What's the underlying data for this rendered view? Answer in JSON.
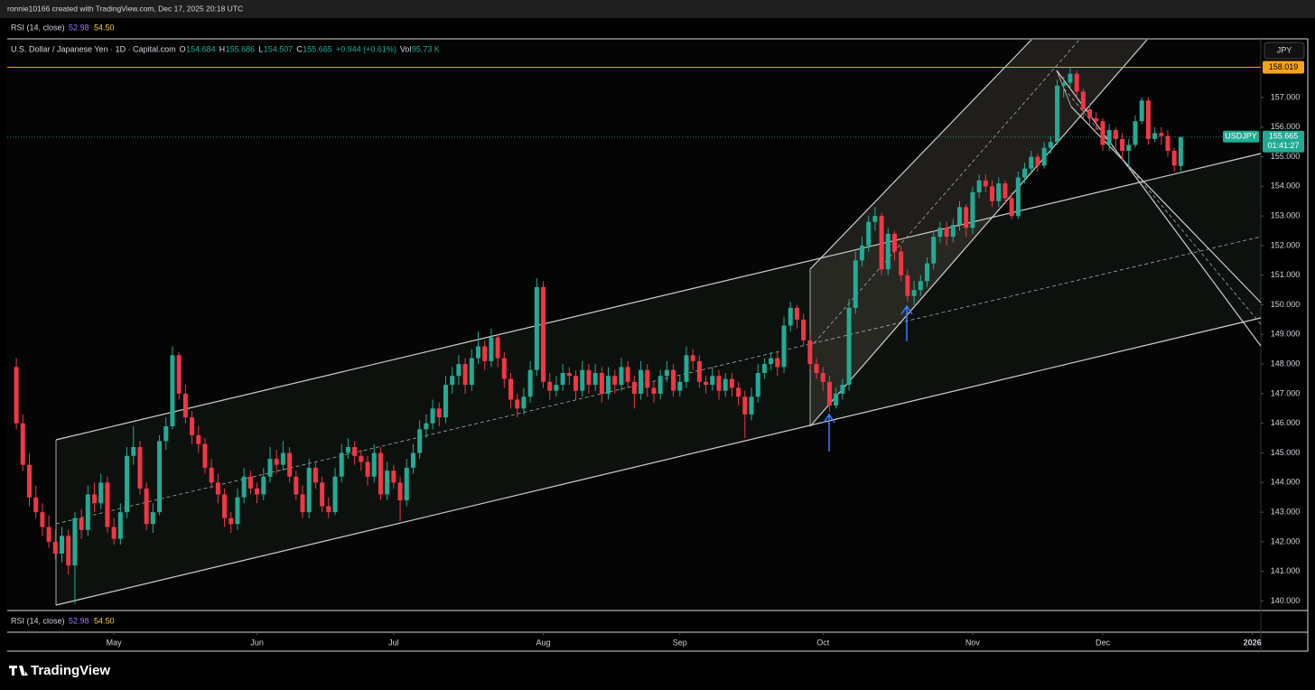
{
  "chart_data": {
    "type": "candlestick",
    "header": "ronnie10166 created with TradingView.com, Dec 17, 2025 20:18 UTC",
    "rsi_label": "RSI (14, close)",
    "rsi_values": [
      "52.98",
      "54.50"
    ],
    "title": "U.S. Dollar / Japanese Yen · 1D · Capital.com",
    "ohlc_keys": [
      "O",
      "H",
      "L",
      "C"
    ],
    "change": "+0.944 (+0.61%)",
    "volume_key": "Vol",
    "volume": "95.73 K",
    "currency": "JPY",
    "alert_level": 158.019,
    "ticker": "USDJPY",
    "countdown": "01:41:27",
    "brand": "TradingView",
    "up_color": "#22ab94",
    "down_color": "#f23645",
    "alert_color": "#f7a21b",
    "xlim": [
      -1.4,
      191.3
    ],
    "xticks": [
      {
        "value": 15,
        "label": "May"
      },
      {
        "value": 37,
        "label": "Jun"
      },
      {
        "value": 58,
        "label": "Jul"
      },
      {
        "value": 81,
        "label": "Aug"
      },
      {
        "value": 102,
        "label": "Sep"
      },
      {
        "value": 124,
        "label": "Oct"
      },
      {
        "value": 147,
        "label": "Nov"
      },
      {
        "value": 167,
        "label": "Dec"
      },
      {
        "value": 190,
        "label": "2026"
      }
    ],
    "ylim": [
      139.68,
      158.95
    ],
    "yticks": [
      {
        "value": 140,
        "label": "140.000"
      },
      {
        "value": 141,
        "label": "141.000"
      },
      {
        "value": 142,
        "label": "142.000"
      },
      {
        "value": 143,
        "label": "143.000"
      },
      {
        "value": 144,
        "label": "144.000"
      },
      {
        "value": 145,
        "label": "145.000"
      },
      {
        "value": 146,
        "label": "146.000"
      },
      {
        "value": 147,
        "label": "147.000"
      },
      {
        "value": 148,
        "label": "148.000"
      },
      {
        "value": 149,
        "label": "149.000"
      },
      {
        "value": 150,
        "label": "150.000"
      },
      {
        "value": 151,
        "label": "151.000"
      },
      {
        "value": 152,
        "label": "152.000"
      },
      {
        "value": 153,
        "label": "153.000"
      },
      {
        "value": 154,
        "label": "154.000"
      },
      {
        "value": 155,
        "label": "155.000"
      },
      {
        "value": 156,
        "label": "156.000"
      },
      {
        "value": 157,
        "label": "157.000"
      }
    ],
    "candles": [
      [
        147.9,
        148.2,
        145.8,
        146.0
      ],
      [
        146.0,
        146.3,
        144.4,
        144.6
      ],
      [
        144.6,
        145.0,
        143.2,
        143.5
      ],
      [
        143.5,
        143.9,
        142.8,
        143.0
      ],
      [
        143.0,
        143.3,
        142.2,
        142.5
      ],
      [
        142.5,
        142.9,
        141.8,
        142.0
      ],
      [
        142.0,
        142.4,
        141.4,
        141.6
      ],
      [
        141.6,
        142.5,
        141.3,
        142.2
      ],
      [
        142.2,
        142.4,
        140.9,
        141.2
      ],
      [
        141.2,
        143.0,
        139.9,
        142.8
      ],
      [
        142.8,
        143.1,
        142.1,
        142.4
      ],
      [
        142.4,
        143.9,
        142.2,
        143.6
      ],
      [
        143.6,
        144.0,
        143.0,
        143.3
      ],
      [
        143.3,
        144.3,
        143.1,
        144.0
      ],
      [
        144.0,
        144.2,
        142.3,
        142.5
      ],
      [
        142.5,
        142.8,
        141.9,
        142.1
      ],
      [
        142.1,
        143.3,
        141.9,
        143.0
      ],
      [
        143.0,
        145.2,
        142.8,
        144.9
      ],
      [
        144.9,
        145.9,
        144.6,
        145.2
      ],
      [
        145.2,
        145.4,
        143.6,
        143.8
      ],
      [
        143.8,
        144.0,
        142.4,
        142.6
      ],
      [
        142.6,
        143.3,
        142.3,
        143.0
      ],
      [
        143.0,
        145.6,
        142.9,
        145.4
      ],
      [
        145.4,
        146.2,
        145.1,
        145.9
      ],
      [
        145.9,
        148.6,
        145.8,
        148.3
      ],
      [
        148.3,
        148.4,
        146.8,
        147.0
      ],
      [
        147.0,
        147.3,
        146.0,
        146.2
      ],
      [
        146.2,
        146.4,
        145.3,
        145.6
      ],
      [
        145.6,
        145.9,
        145.0,
        145.3
      ],
      [
        145.3,
        145.5,
        144.3,
        144.5
      ],
      [
        144.5,
        144.8,
        143.8,
        144.0
      ],
      [
        144.0,
        144.3,
        143.3,
        143.6
      ],
      [
        143.6,
        143.8,
        142.5,
        142.8
      ],
      [
        142.8,
        143.0,
        142.3,
        142.6
      ],
      [
        142.6,
        143.8,
        142.4,
        143.5
      ],
      [
        143.5,
        144.5,
        143.3,
        144.2
      ],
      [
        144.2,
        144.4,
        143.6,
        143.8
      ],
      [
        143.8,
        144.0,
        143.3,
        143.6
      ],
      [
        143.6,
        144.5,
        143.4,
        144.2
      ],
      [
        144.2,
        145.2,
        144.0,
        144.8
      ],
      [
        144.8,
        145.1,
        144.3,
        144.6
      ],
      [
        144.6,
        145.4,
        144.4,
        145.0
      ],
      [
        145.0,
        145.2,
        144.0,
        144.2
      ],
      [
        144.2,
        144.4,
        143.4,
        143.6
      ],
      [
        143.6,
        143.9,
        142.8,
        143.0
      ],
      [
        143.0,
        144.8,
        142.8,
        144.5
      ],
      [
        144.5,
        144.7,
        143.8,
        144.0
      ],
      [
        144.0,
        144.2,
        143.0,
        143.2
      ],
      [
        143.2,
        143.5,
        142.8,
        143.0
      ],
      [
        143.0,
        144.5,
        142.9,
        144.2
      ],
      [
        144.2,
        145.3,
        144.0,
        145.0
      ],
      [
        145.0,
        145.5,
        144.8,
        145.2
      ],
      [
        145.2,
        145.4,
        144.6,
        144.9
      ],
      [
        144.9,
        145.1,
        144.4,
        144.7
      ],
      [
        144.7,
        144.9,
        143.9,
        144.2
      ],
      [
        144.2,
        145.3,
        144.0,
        145.0
      ],
      [
        145.0,
        145.2,
        143.4,
        143.6
      ],
      [
        143.6,
        144.7,
        143.4,
        144.4
      ],
      [
        144.4,
        144.6,
        143.8,
        144.0
      ],
      [
        144.0,
        144.2,
        142.7,
        143.4
      ],
      [
        143.4,
        144.8,
        143.2,
        144.5
      ],
      [
        144.5,
        145.3,
        144.3,
        145.0
      ],
      [
        145.0,
        146.1,
        144.8,
        145.8
      ],
      [
        145.8,
        146.3,
        145.5,
        146.0
      ],
      [
        146.0,
        146.8,
        145.8,
        146.5
      ],
      [
        146.5,
        146.7,
        145.9,
        146.2
      ],
      [
        146.2,
        147.6,
        146.0,
        147.3
      ],
      [
        147.3,
        147.9,
        147.0,
        147.6
      ],
      [
        147.6,
        148.3,
        147.3,
        148.0
      ],
      [
        148.0,
        148.2,
        147.0,
        147.3
      ],
      [
        147.3,
        148.5,
        147.1,
        148.2
      ],
      [
        148.2,
        149.1,
        148.0,
        148.6
      ],
      [
        148.6,
        148.8,
        147.8,
        148.1
      ],
      [
        148.1,
        149.2,
        147.9,
        148.9
      ],
      [
        148.9,
        149.0,
        147.9,
        148.2
      ],
      [
        148.2,
        148.4,
        147.2,
        147.5
      ],
      [
        147.5,
        147.7,
        146.5,
        146.8
      ],
      [
        146.8,
        147.0,
        146.2,
        146.5
      ],
      [
        146.5,
        147.2,
        146.3,
        146.9
      ],
      [
        146.9,
        148.1,
        146.7,
        147.8
      ],
      [
        147.8,
        150.9,
        147.6,
        150.6
      ],
      [
        150.6,
        150.8,
        147.2,
        147.4
      ],
      [
        147.4,
        147.7,
        146.8,
        147.1
      ],
      [
        147.1,
        147.6,
        146.9,
        147.3
      ],
      [
        147.3,
        148.0,
        147.1,
        147.7
      ],
      [
        147.7,
        147.9,
        147.3,
        147.6
      ],
      [
        147.6,
        147.8,
        146.8,
        147.1
      ],
      [
        147.1,
        148.1,
        146.9,
        147.8
      ],
      [
        147.8,
        148.0,
        147.0,
        147.3
      ],
      [
        147.3,
        148.0,
        147.1,
        147.7
      ],
      [
        147.7,
        147.9,
        146.7,
        147.0
      ],
      [
        147.0,
        147.9,
        146.8,
        147.6
      ],
      [
        147.6,
        147.8,
        147.0,
        147.3
      ],
      [
        147.3,
        148.2,
        147.1,
        147.9
      ],
      [
        147.9,
        148.1,
        147.2,
        147.4
      ],
      [
        147.4,
        147.6,
        146.5,
        147.0
      ],
      [
        147.0,
        148.1,
        146.8,
        147.8
      ],
      [
        147.8,
        148.0,
        146.9,
        147.2
      ],
      [
        147.2,
        147.4,
        146.7,
        147.0
      ],
      [
        147.0,
        147.8,
        146.8,
        147.6
      ],
      [
        147.6,
        148.1,
        147.4,
        147.8
      ],
      [
        147.8,
        148.0,
        146.9,
        147.1
      ],
      [
        147.1,
        147.6,
        146.9,
        147.4
      ],
      [
        147.4,
        148.6,
        147.2,
        148.3
      ],
      [
        148.3,
        148.5,
        147.8,
        148.1
      ],
      [
        148.1,
        148.3,
        147.2,
        147.4
      ],
      [
        147.4,
        147.6,
        147.0,
        147.3
      ],
      [
        147.3,
        147.9,
        147.1,
        147.6
      ],
      [
        147.6,
        147.8,
        146.8,
        147.1
      ],
      [
        147.1,
        147.7,
        146.9,
        147.5
      ],
      [
        147.5,
        147.7,
        146.9,
        147.2
      ],
      [
        147.2,
        147.4,
        146.6,
        146.9
      ],
      [
        146.9,
        147.1,
        145.5,
        146.3
      ],
      [
        146.3,
        147.2,
        146.1,
        146.9
      ],
      [
        146.9,
        148.0,
        146.7,
        147.7
      ],
      [
        147.7,
        148.2,
        147.5,
        148.0
      ],
      [
        148.0,
        148.4,
        147.8,
        148.2
      ],
      [
        148.2,
        148.4,
        147.6,
        147.9
      ],
      [
        147.9,
        149.6,
        147.7,
        149.3
      ],
      [
        149.3,
        150.1,
        149.1,
        149.9
      ],
      [
        149.9,
        150.0,
        149.2,
        149.5
      ],
      [
        149.5,
        149.7,
        148.6,
        148.8
      ],
      [
        148.8,
        149.0,
        147.8,
        148.0
      ],
      [
        148.0,
        148.2,
        147.5,
        147.7
      ],
      [
        147.7,
        147.9,
        147.1,
        147.4
      ],
      [
        147.4,
        147.6,
        146.4,
        146.6
      ],
      [
        146.6,
        147.2,
        146.5,
        147.0
      ],
      [
        147.0,
        147.5,
        146.8,
        147.3
      ],
      [
        147.3,
        150.2,
        147.1,
        149.9
      ],
      [
        149.9,
        151.8,
        149.7,
        151.5
      ],
      [
        151.5,
        152.3,
        151.3,
        152.0
      ],
      [
        152.0,
        153.0,
        151.8,
        152.8
      ],
      [
        152.8,
        153.3,
        152.5,
        153.0
      ],
      [
        153.0,
        153.1,
        151.0,
        151.2
      ],
      [
        151.2,
        152.6,
        151.0,
        152.4
      ],
      [
        152.4,
        152.5,
        151.5,
        151.8
      ],
      [
        151.8,
        152.0,
        150.8,
        151.0
      ],
      [
        151.0,
        151.2,
        150.1,
        150.3
      ],
      [
        150.3,
        150.8,
        150.0,
        150.5
      ],
      [
        150.5,
        151.0,
        150.3,
        150.8
      ],
      [
        150.8,
        151.6,
        150.6,
        151.4
      ],
      [
        151.4,
        152.5,
        151.2,
        152.3
      ],
      [
        152.3,
        152.8,
        152.1,
        152.6
      ],
      [
        152.6,
        152.8,
        152.0,
        152.3
      ],
      [
        152.3,
        152.9,
        152.1,
        152.7
      ],
      [
        152.7,
        153.5,
        152.5,
        153.3
      ],
      [
        153.3,
        153.4,
        152.3,
        152.6
      ],
      [
        152.6,
        154.0,
        152.4,
        153.8
      ],
      [
        153.8,
        154.4,
        153.6,
        154.2
      ],
      [
        154.2,
        154.4,
        153.8,
        154.0
      ],
      [
        154.0,
        154.2,
        153.3,
        153.5
      ],
      [
        153.5,
        154.3,
        153.3,
        154.1
      ],
      [
        154.1,
        154.2,
        153.4,
        153.6
      ],
      [
        153.6,
        153.8,
        152.9,
        153.0
      ],
      [
        153.0,
        154.5,
        152.9,
        154.3
      ],
      [
        154.3,
        154.8,
        154.1,
        154.6
      ],
      [
        154.6,
        155.2,
        154.4,
        155.0
      ],
      [
        155.0,
        155.1,
        154.5,
        154.7
      ],
      [
        154.7,
        155.5,
        154.6,
        155.3
      ],
      [
        155.3,
        155.7,
        155.1,
        155.5
      ],
      [
        155.5,
        157.6,
        155.4,
        157.4
      ],
      [
        157.4,
        157.7,
        157.0,
        157.5
      ],
      [
        157.5,
        158.0,
        157.3,
        157.8
      ],
      [
        157.8,
        157.9,
        157.0,
        157.2
      ],
      [
        157.2,
        157.3,
        156.3,
        156.6
      ],
      [
        156.6,
        156.8,
        156.0,
        156.3
      ],
      [
        156.3,
        156.5,
        155.9,
        156.2
      ],
      [
        156.2,
        156.3,
        155.2,
        155.4
      ],
      [
        155.4,
        156.1,
        155.2,
        155.9
      ],
      [
        155.9,
        156.0,
        155.3,
        155.6
      ],
      [
        155.6,
        155.8,
        154.9,
        155.2
      ],
      [
        155.2,
        155.6,
        154.6,
        155.4
      ],
      [
        155.4,
        156.4,
        155.3,
        156.2
      ],
      [
        156.2,
        157.0,
        156.1,
        156.9
      ],
      [
        156.9,
        157.0,
        155.4,
        155.6
      ],
      [
        155.6,
        156.0,
        155.5,
        155.8
      ],
      [
        155.8,
        156.0,
        155.4,
        155.7
      ],
      [
        155.7,
        155.9,
        155.0,
        155.2
      ],
      [
        155.2,
        155.3,
        154.5,
        154.7
      ],
      [
        154.684,
        155.686,
        154.507,
        155.665
      ]
    ]
  }
}
